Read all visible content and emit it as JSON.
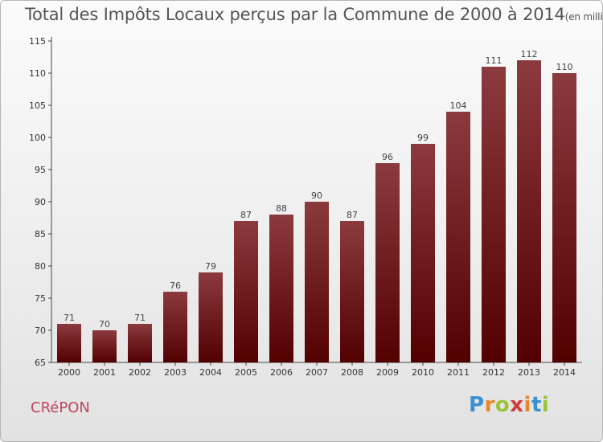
{
  "title": "Total des Impôts Locaux perçus par la Commune de 2000 à 2014",
  "unit": "(en milliers d'€)",
  "commune": "CRéPON",
  "logo": {
    "letters": [
      "P",
      "r",
      "o",
      "x",
      "i",
      "t",
      "i"
    ],
    "colors": [
      "#3a8fd0",
      "#e8862a",
      "#9bc33a",
      "#d33b3b",
      "#e8862a",
      "#3a8fd0",
      "#9bc33a"
    ]
  },
  "colors": {
    "bar_top": "#8b3a3e",
    "bar_bottom": "#520000",
    "axis": "#444444",
    "commune": "#c0455e"
  },
  "chart_data": {
    "type": "bar",
    "categories": [
      "2000",
      "2001",
      "2002",
      "2003",
      "2004",
      "2005",
      "2006",
      "2007",
      "2008",
      "2009",
      "2010",
      "2011",
      "2012",
      "2013",
      "2014"
    ],
    "values": [
      71,
      70,
      71,
      76,
      79,
      87,
      88,
      90,
      87,
      96,
      99,
      104,
      111,
      112,
      110
    ],
    "ylim": [
      65,
      115
    ],
    "yticks": [
      65,
      70,
      75,
      80,
      85,
      90,
      95,
      100,
      105,
      110,
      115
    ],
    "grid": false,
    "legend": "none"
  }
}
